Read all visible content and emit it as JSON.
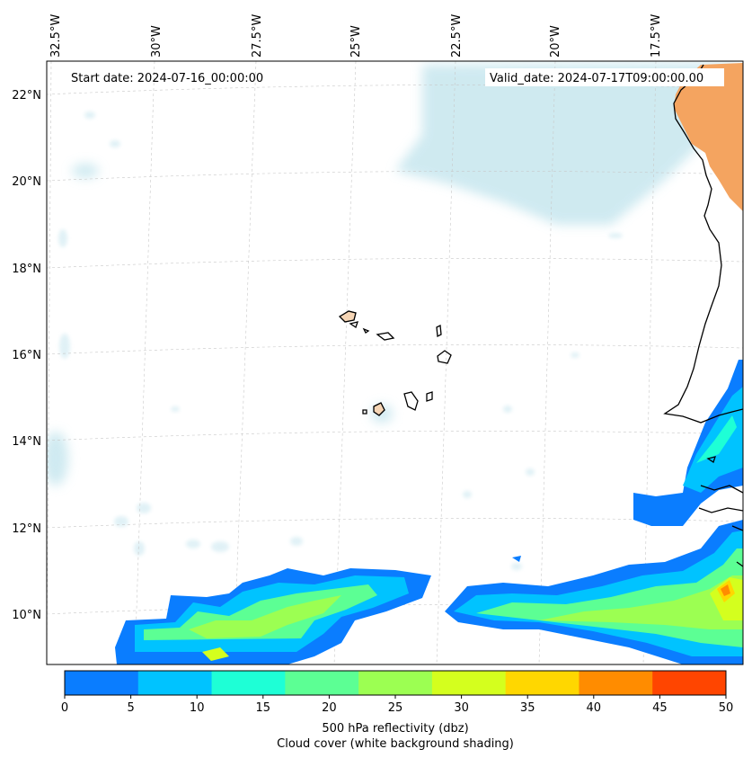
{
  "map": {
    "start_date": "Start date: 2024-07-16_00:00:00",
    "valid_date": "Valid_date: 2024-07-17T09:00:00.00",
    "lon_labels": [
      "32.5°W",
      "30°W",
      "27.5°W",
      "25°W",
      "22.5°W",
      "20°W",
      "17.5°W"
    ],
    "lat_labels": [
      "22°N",
      "20°N",
      "18°N",
      "16°N",
      "14°N",
      "12°N",
      "10°N"
    ]
  },
  "colorbar": {
    "ticks": [
      "0",
      "5",
      "10",
      "15",
      "20",
      "25",
      "30",
      "35",
      "40",
      "45",
      "50"
    ],
    "colors": [
      "#0a7dff",
      "#00c3ff",
      "#1effd6",
      "#5cff94",
      "#9cff52",
      "#d4ff1e",
      "#ffd700",
      "#ff8c00",
      "#ff4500"
    ],
    "title": "500 hPa reflectivity (dbz)",
    "subtitle": "Cloud cover (white background shading)"
  }
}
